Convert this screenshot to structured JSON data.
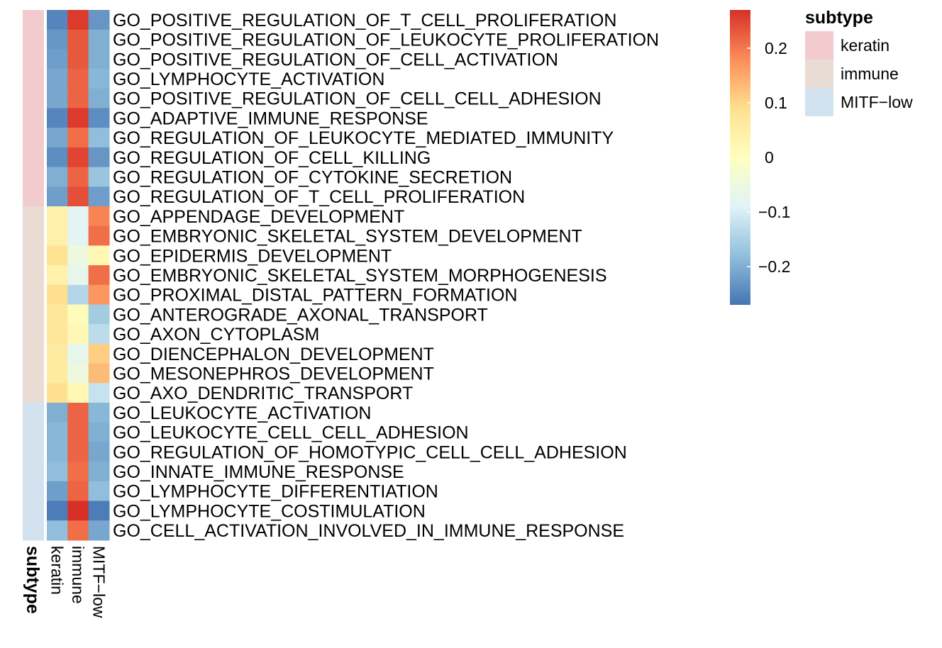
{
  "chart_data": {
    "type": "heatmap",
    "columns": [
      "keratin",
      "immune",
      "MITF−low"
    ],
    "annotation": {
      "title": "subtype",
      "levels": [
        {
          "label": "keratin",
          "color": "#F2CBCF"
        },
        {
          "label": "immune",
          "color": "#E8DCD4"
        },
        {
          "label": "MITF−low",
          "color": "#D3E2EF"
        }
      ]
    },
    "rows": [
      {
        "label": "GO_POSITIVE_REGULATION_OF_T_CELL_PROLIFERATION",
        "subtype": "keratin",
        "values": [
          -0.25,
          0.26,
          -0.23
        ]
      },
      {
        "label": "GO_POSITIVE_REGULATION_OF_LEUKOCYTE_PROLIFERATION",
        "subtype": "keratin",
        "values": [
          -0.23,
          0.23,
          -0.2
        ]
      },
      {
        "label": "GO_POSITIVE_REGULATION_OF_CELL_ACTIVATION",
        "subtype": "keratin",
        "values": [
          -0.22,
          0.23,
          -0.2
        ]
      },
      {
        "label": "GO_LYMPHOCYTE_ACTIVATION",
        "subtype": "keratin",
        "values": [
          -0.21,
          0.22,
          -0.19
        ]
      },
      {
        "label": "GO_POSITIVE_REGULATION_OF_CELL_CELL_ADHESION",
        "subtype": "keratin",
        "values": [
          -0.21,
          0.22,
          -0.2
        ]
      },
      {
        "label": "GO_ADAPTIVE_IMMUNE_RESPONSE",
        "subtype": "keratin",
        "values": [
          -0.25,
          0.26,
          -0.24
        ]
      },
      {
        "label": "GO_REGULATION_OF_LEUKOCYTE_MEDIATED_IMMUNITY",
        "subtype": "keratin",
        "values": [
          -0.21,
          0.21,
          -0.18
        ]
      },
      {
        "label": "GO_REGULATION_OF_CELL_KILLING",
        "subtype": "keratin",
        "values": [
          -0.24,
          0.25,
          -0.23
        ]
      },
      {
        "label": "GO_REGULATION_OF_CYTOKINE_SECRETION",
        "subtype": "keratin",
        "values": [
          -0.2,
          0.22,
          -0.17
        ]
      },
      {
        "label": "GO_REGULATION_OF_T_CELL_PROLIFERATION",
        "subtype": "keratin",
        "values": [
          -0.22,
          0.24,
          -0.22
        ]
      },
      {
        "label": "GO_APPENDAGE_DEVELOPMENT",
        "subtype": "immune",
        "values": [
          0.04,
          -0.08,
          0.19
        ]
      },
      {
        "label": "GO_EMBRYONIC_SKELETAL_SYSTEM_DEVELOPMENT",
        "subtype": "immune",
        "values": [
          0.04,
          -0.08,
          0.21
        ]
      },
      {
        "label": "GO_EPIDERMIS_DEVELOPMENT",
        "subtype": "immune",
        "values": [
          0.08,
          -0.05,
          0.02
        ]
      },
      {
        "label": "GO_EMBRYONIC_SKELETAL_SYSTEM_MORPHOGENESIS",
        "subtype": "immune",
        "values": [
          0.04,
          -0.07,
          0.21
        ]
      },
      {
        "label": "GO_PROXIMAL_DISTAL_PATTERN_FORMATION",
        "subtype": "immune",
        "values": [
          0.09,
          -0.14,
          0.17
        ]
      },
      {
        "label": "GO_ANTEROGRADE_AXONAL_TRANSPORT",
        "subtype": "immune",
        "values": [
          0.07,
          0.01,
          -0.16
        ]
      },
      {
        "label": "GO_AXON_CYTOPLASM",
        "subtype": "immune",
        "values": [
          0.07,
          0.02,
          -0.13
        ]
      },
      {
        "label": "GO_DIENCEPHALON_DEVELOPMENT",
        "subtype": "immune",
        "values": [
          0.06,
          -0.07,
          0.11
        ]
      },
      {
        "label": "GO_MESONEPHROS_DEVELOPMENT",
        "subtype": "immune",
        "values": [
          0.06,
          -0.05,
          0.13
        ]
      },
      {
        "label": "GO_AXO_DENDRITIC_TRANSPORT",
        "subtype": "immune",
        "values": [
          0.09,
          0.02,
          -0.12
        ]
      },
      {
        "label": "GO_LEUKOCYTE_ACTIVATION",
        "subtype": "MITF−low",
        "values": [
          -0.2,
          0.22,
          -0.19
        ]
      },
      {
        "label": "GO_LEUKOCYTE_CELL_CELL_ADHESION",
        "subtype": "MITF−low",
        "values": [
          -0.19,
          0.22,
          -0.2
        ]
      },
      {
        "label": "GO_REGULATION_OF_HOMOTYPIC_CELL_CELL_ADHESION",
        "subtype": "MITF−low",
        "values": [
          -0.19,
          0.22,
          -0.21
        ]
      },
      {
        "label": "GO_INNATE_IMMUNE_RESPONSE",
        "subtype": "MITF−low",
        "values": [
          -0.18,
          0.21,
          -0.2
        ]
      },
      {
        "label": "GO_LYMPHOCYTE_DIFFERENTIATION",
        "subtype": "MITF−low",
        "values": [
          -0.22,
          0.22,
          -0.18
        ]
      },
      {
        "label": "GO_LYMPHOCYTE_COSTIMULATION",
        "subtype": "MITF−low",
        "values": [
          -0.26,
          0.27,
          -0.26
        ]
      },
      {
        "label": "GO_CELL_ACTIVATION_INVOLVED_IN_IMMUNE_RESPONSE",
        "subtype": "MITF−low",
        "values": [
          -0.18,
          0.21,
          -0.21
        ]
      }
    ],
    "color_scale": {
      "min": -0.27,
      "max": 0.27,
      "colors": [
        "#4575B4",
        "#91BFDB",
        "#E0F3F8",
        "#FFFFBF",
        "#FEE090",
        "#FC8D59",
        "#D73027"
      ],
      "ticks": [
        0.2,
        0.1,
        0,
        -0.1,
        -0.2
      ],
      "tick_labels": [
        "0.2",
        "0.1",
        "0",
        "−0.1",
        "−0.2"
      ]
    },
    "legend_placement": "right",
    "annotation_legend_placement": "top-right"
  }
}
